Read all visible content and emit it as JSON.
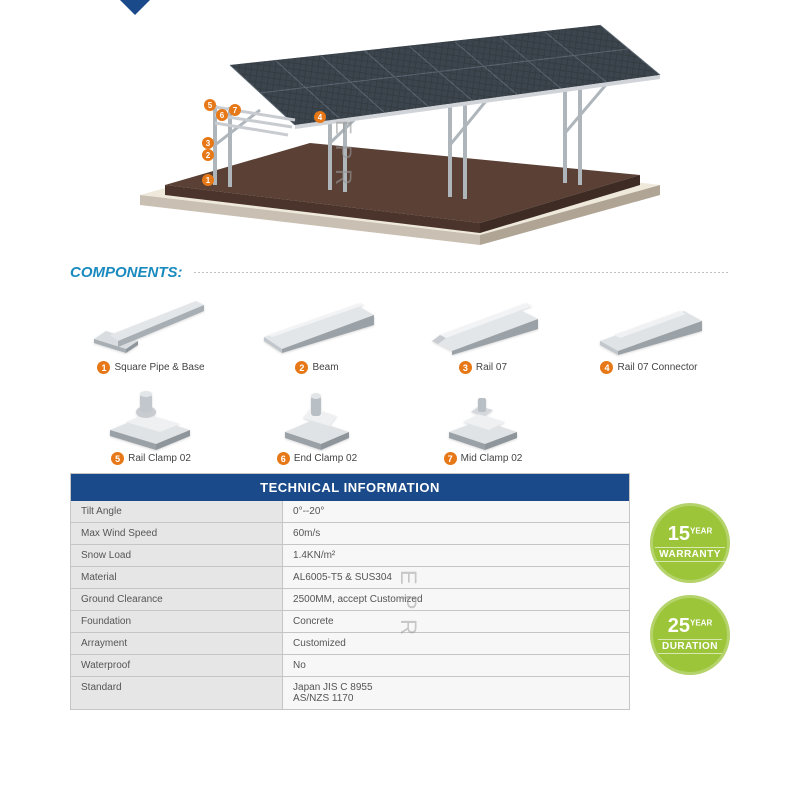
{
  "watermark": "E P R",
  "section_title": "COMPONENTS:",
  "hero": {
    "panel_color_dark": "#2a2f33",
    "panel_color_light": "#4a5560",
    "frame_color": "#c8ccd0",
    "base_color": "#5a4035",
    "curb_color": "#b8aca0",
    "floor_color": "#efe9dc",
    "callout_color": "#e67817",
    "callouts": [
      1,
      2,
      3,
      4,
      5,
      6,
      7
    ]
  },
  "metal_colors": {
    "light": "#e8eaec",
    "mid": "#c8ccd0",
    "dark": "#9aa2a8"
  },
  "components": [
    {
      "n": 1,
      "label": "Square Pipe & Base"
    },
    {
      "n": 2,
      "label": "Beam"
    },
    {
      "n": 3,
      "label": "Rail 07"
    },
    {
      "n": 4,
      "label": "Rail 07 Connector"
    },
    {
      "n": 5,
      "label": "Rail Clamp 02"
    },
    {
      "n": 6,
      "label": "End Clamp 02"
    },
    {
      "n": 7,
      "label": "Mid Clamp 02"
    }
  ],
  "tech": {
    "title": "TECHNICAL INFORMATION",
    "rows": [
      {
        "k": "Tilt Angle",
        "v": "0°--20°"
      },
      {
        "k": "Max Wind Speed",
        "v": "60m/s"
      },
      {
        "k": "Snow Load",
        "v": "1.4KN/m²"
      },
      {
        "k": "Material",
        "v": "AL6005-T5 & SUS304"
      },
      {
        "k": "Ground Clearance",
        "v": "2500MM, accept Customized"
      },
      {
        "k": "Foundation",
        "v": "Concrete"
      },
      {
        "k": "Arrayment",
        "v": "Customized"
      },
      {
        "k": "Waterproof",
        "v": "No"
      },
      {
        "k": "Standard",
        "v": "Japan JIS C 8955\nAS/NZS 1170"
      }
    ],
    "header_bg": "#1a4a8a",
    "key_bg": "#e6e6e6",
    "val_bg": "#f7f7f7",
    "border": "#c5c5c5"
  },
  "badges": [
    {
      "num": "15",
      "yr": "YEAR",
      "txt": "WARRANTY"
    },
    {
      "num": "25",
      "yr": "YEAR",
      "txt": "DURATION"
    }
  ],
  "badge_bg": "#9cc53a",
  "accent_blue": "#1a4a8a",
  "title_blue": "#1a8abf",
  "num_bg": "#e67817"
}
